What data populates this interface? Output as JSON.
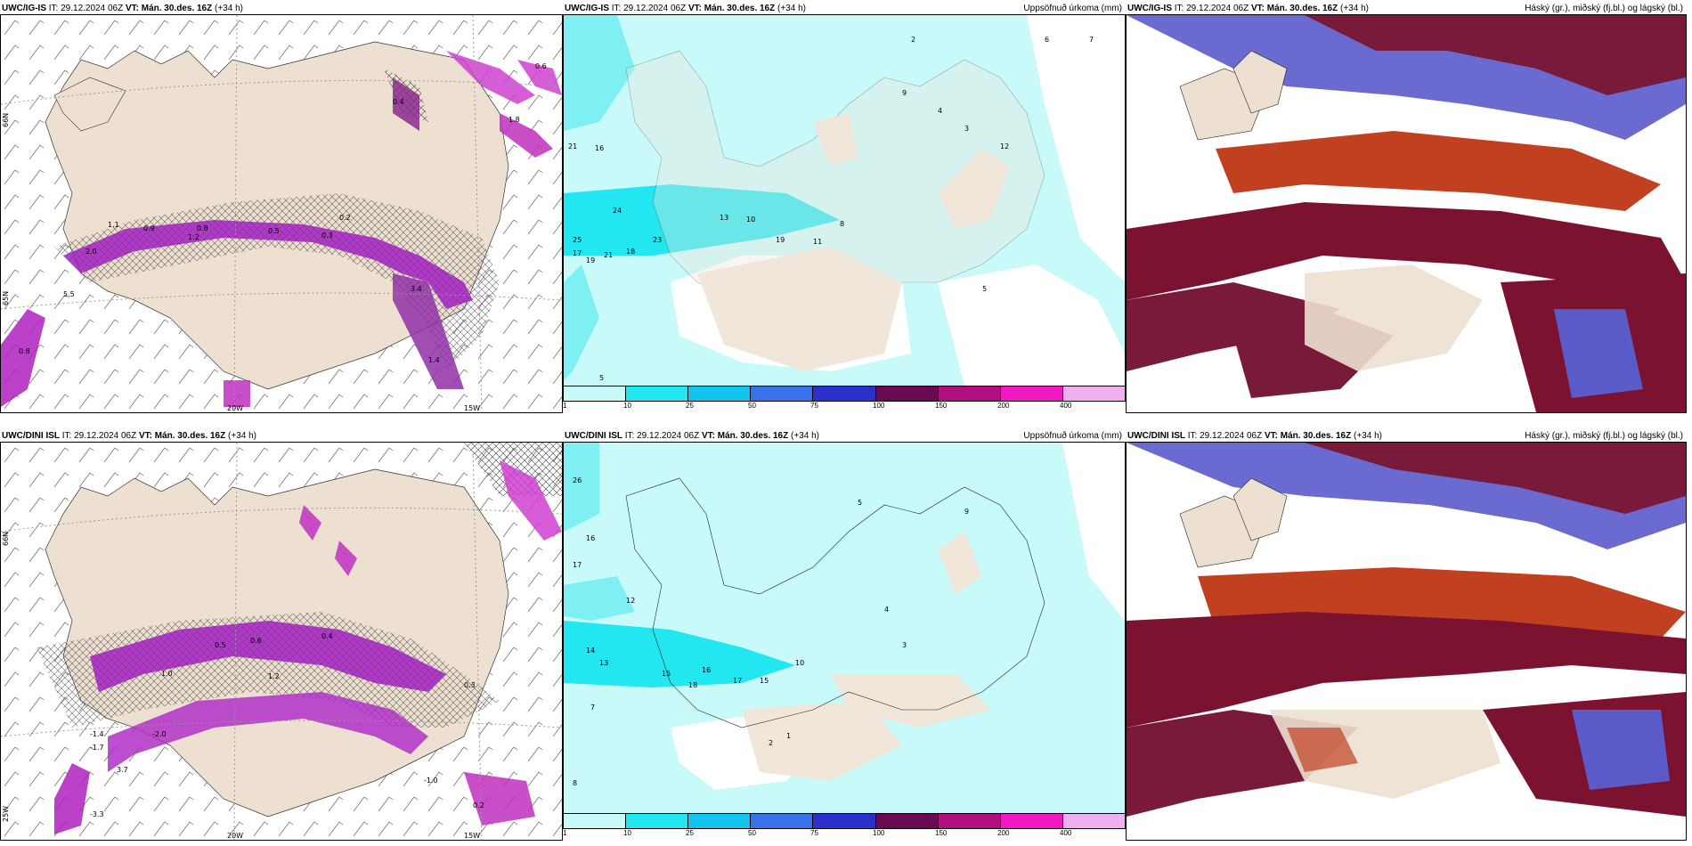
{
  "rows": [
    {
      "model": "UWC/IG-IS",
      "it_label": "IT:",
      "it_value": "29.12.2024 06Z",
      "vt_label": "VT:",
      "vt_value": "Mán. 30.des. 16Z",
      "lead": "(+34 h)"
    },
    {
      "model": "UWC/DINI ISL",
      "it_label": "IT:",
      "it_value": "29.12.2024 06Z",
      "vt_label": "VT:",
      "vt_value": "Mán. 30.des. 16Z",
      "lead": "(+34 h)"
    }
  ],
  "precip_title": "Uppsöfnuð úrkoma (mm)",
  "cloud_title": "Háský (gr.), miðský (fj.bl.) og lágský (bl.)",
  "axis_labels": {
    "lat66": "66N",
    "lat65": "65N",
    "lon20": "20W",
    "lon15": "15W",
    "lon25": "25W"
  },
  "colorbar": {
    "labels": [
      "1",
      "10",
      "25",
      "50",
      "75",
      "100",
      "150",
      "200",
      "400"
    ],
    "colors": [
      "#c8fafa",
      "#22e6f0",
      "#12c4ee",
      "#3a70e8",
      "#2a30c8",
      "#6a0a50",
      "#b0107e",
      "#f018c0",
      "#f0b0f0"
    ]
  },
  "precip_numbers_top": [
    "2",
    "6",
    "7",
    "21",
    "16",
    "5",
    "24",
    "25",
    "17",
    "19",
    "21",
    "23",
    "18",
    "13",
    "10",
    "19",
    "11",
    "8",
    "9",
    "4",
    "3",
    "12",
    "5"
  ],
  "precip_numbers_bottom": [
    "26",
    "16",
    "17",
    "12",
    "14",
    "13",
    "15",
    "16",
    "18",
    "17",
    "15",
    "10",
    "8",
    "9",
    "5",
    "4",
    "3",
    "2",
    "1",
    "7"
  ],
  "freezing_labels_top": [
    "0.9",
    "0.6",
    "0.4",
    "1.1",
    "0.8",
    "0.5",
    "0.3",
    "2.0",
    "1.2",
    "0.2",
    "3.4",
    "5.5",
    "1.4",
    "0.8",
    "1.8"
  ],
  "freezing_labels_bottom": [
    "0.5",
    "0.6",
    "0.4",
    "1.0",
    "1.2",
    "0.3",
    "-1.4",
    "-2.0",
    "-1.7",
    "-3.3",
    "-1.0",
    "3.7",
    "0.2"
  ]
}
